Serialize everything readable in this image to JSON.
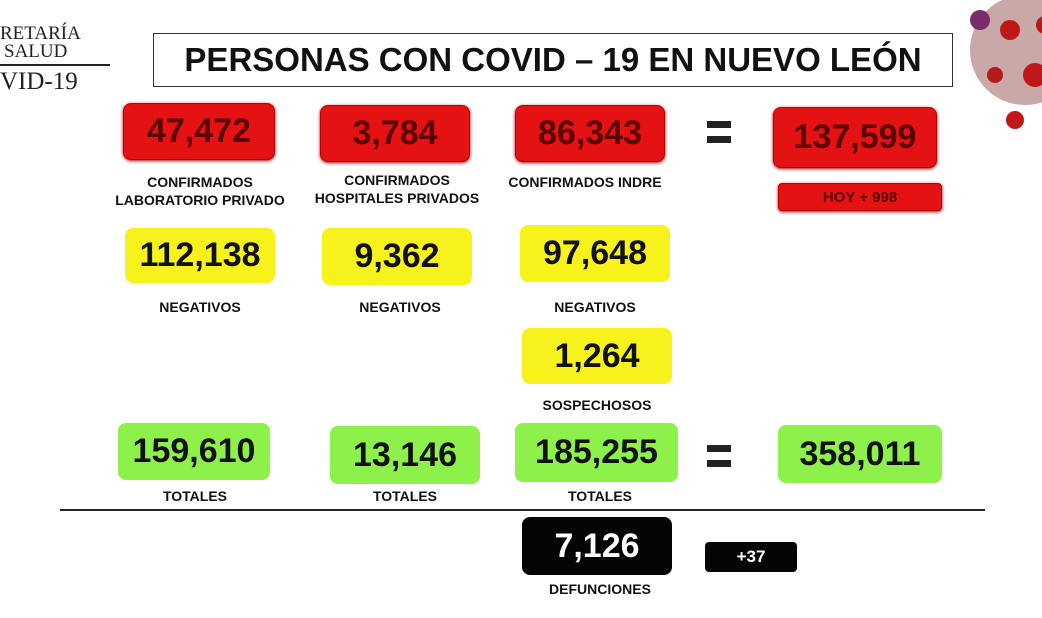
{
  "header": {
    "logo_line1": "RETARÍA",
    "logo_line2": "SALUD",
    "logo_line3": "VID-19",
    "title": "PERSONAS CON COVID – 19 EN NUEVO LEÓN"
  },
  "confirmados": [
    {
      "value": "47,472",
      "label": "CONFIRMADOS\nLABORATORIO PRIVADO"
    },
    {
      "value": "3,784",
      "label": "CONFIRMADOS\nHOSPITALES PRIVADOS"
    },
    {
      "value": "86,343",
      "label": "CONFIRMADOS INDRE"
    }
  ],
  "confirmados_total": "137,599",
  "hoy": "HOY + 998",
  "negativos": [
    {
      "value": "112,138",
      "label": "NEGATIVOS"
    },
    {
      "value": "9,362",
      "label": "NEGATIVOS"
    },
    {
      "value": "97,648",
      "label": "NEGATIVOS"
    }
  ],
  "sospechosos": {
    "value": "1,264",
    "label": "SOSPECHOSOS"
  },
  "totales": [
    {
      "value": "159,610",
      "label": "TOTALES"
    },
    {
      "value": "13,146",
      "label": "TOTALES"
    },
    {
      "value": "185,255",
      "label": "TOTALES"
    }
  ],
  "gran_total": "358,011",
  "defunciones": {
    "value": "7,126",
    "label": "DEFUNCIONES",
    "delta": "+37"
  },
  "colors": {
    "red": "#e41212",
    "yellow": "#f7f21c",
    "green": "#8ef04a",
    "black": "#050505"
  }
}
